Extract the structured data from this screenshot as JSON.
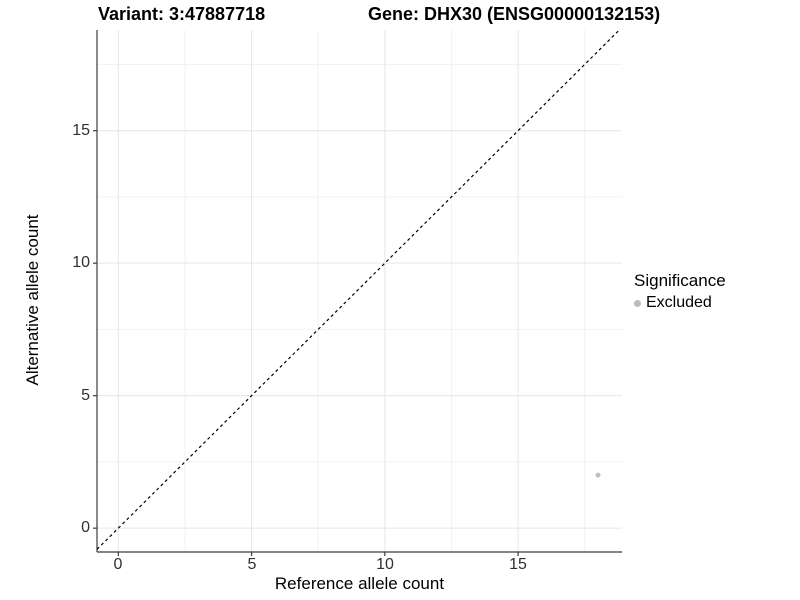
{
  "chart_data": {
    "type": "scatter",
    "title_left": "Variant: 3:47887718",
    "title_right": "Gene: DHX30 (ENSG00000132153)",
    "xlabel": "Reference allele count",
    "ylabel": "Alternative allele count",
    "x_ticks": [
      0,
      5,
      10,
      15
    ],
    "y_ticks": [
      0,
      5,
      10,
      15
    ],
    "x_minor_ticks": [
      2.5,
      7.5,
      12.5,
      17.5
    ],
    "y_minor_ticks": [
      2.5,
      7.5,
      12.5,
      17.5
    ],
    "xlim": [
      -0.8,
      18.9
    ],
    "ylim": [
      -0.9,
      18.8
    ],
    "grid": true,
    "identity_line": {
      "equation": "y = x",
      "style": "dashed",
      "color": "#000000"
    },
    "series": [
      {
        "name": "Excluded",
        "color": "#bdbdbd",
        "points": [
          {
            "x": 18,
            "y": 2
          }
        ]
      }
    ]
  },
  "legend": {
    "title": "Significance",
    "position": "right",
    "items": [
      {
        "label": "Excluded",
        "color": "#bdbdbd"
      }
    ]
  },
  "colors": {
    "background": "#ffffff",
    "grid_major": "#e6e6e6",
    "grid_minor": "#f2f2f2",
    "axis_line": "#3c3c3c",
    "tick_mark": "#3c3c3c",
    "tick_text": "#303030"
  }
}
